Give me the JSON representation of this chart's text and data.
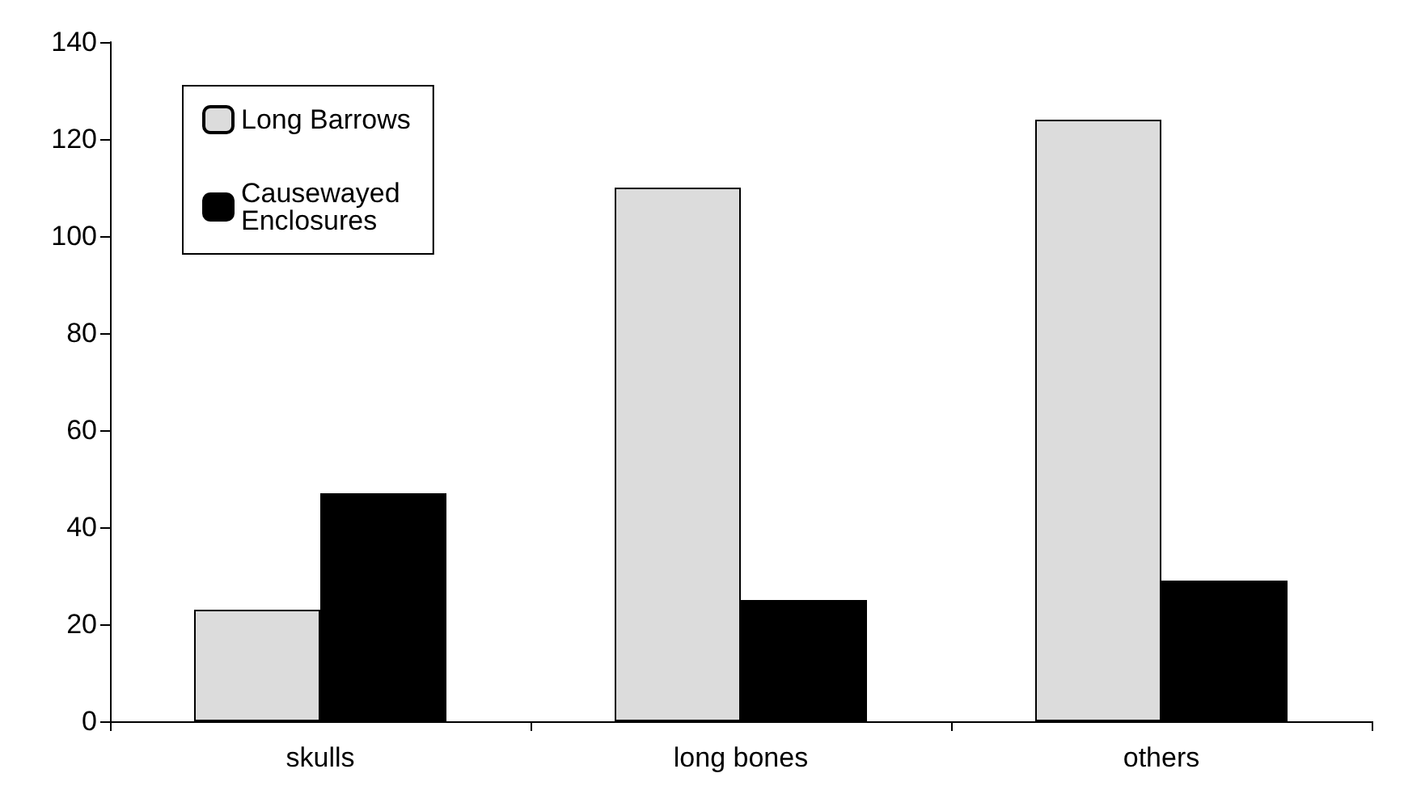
{
  "chart_data": {
    "type": "bar",
    "categories": [
      "skulls",
      "long bones",
      "others"
    ],
    "series": [
      {
        "name": "Long Barrows",
        "color": "#dcdcdc",
        "values": [
          23,
          110,
          124
        ]
      },
      {
        "name": "Causewayed Enclosures",
        "color": "#000000",
        "values": [
          47,
          25,
          29
        ]
      }
    ],
    "ylim": [
      0,
      140
    ],
    "yticks": [
      0,
      20,
      40,
      60,
      80,
      100,
      120,
      140
    ],
    "grid": false,
    "legend": "top left"
  }
}
